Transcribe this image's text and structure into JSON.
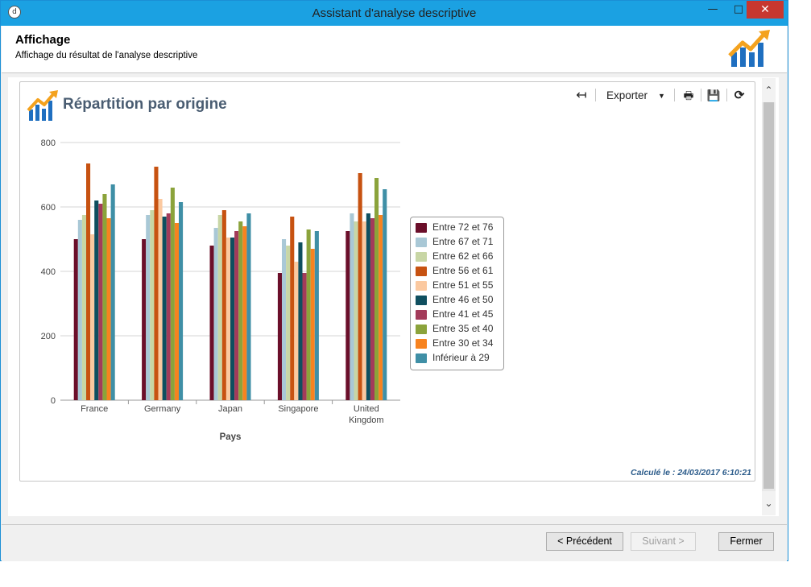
{
  "window": {
    "title": "Assistant d'analyse descriptive",
    "app_icon": "analysis-app-icon",
    "controls": {
      "minimize": "—",
      "maximize": "□",
      "close": "✕"
    }
  },
  "header": {
    "title": "Affichage",
    "subtitle": "Affichage du résultat de l'analyse descriptive",
    "logo_icon": "chart-trend-icon"
  },
  "toolbar": {
    "back_icon": "↤",
    "export_label": "Exporter",
    "dropdown_icon": "▼",
    "print_icon": "🖶",
    "save_icon": "💾",
    "refresh_icon": "⟳"
  },
  "chart_title": "Répartition par origine",
  "computed_label": "Calculé le : 24/03/2017 6:10:21",
  "colors": {
    "accent": "#1ba1e2",
    "close_button": "#c7372f",
    "title_text": "#4a5d72"
  },
  "chart_data": {
    "type": "bar",
    "categories": [
      "France",
      "Germany",
      "Japan",
      "Singapore",
      "United Kingdom"
    ],
    "xlabel": "Pays",
    "ylabel": "",
    "ylim": [
      0,
      800
    ],
    "yticks": [
      0,
      200,
      400,
      600,
      800
    ],
    "grid": true,
    "legend_position": "right",
    "series": [
      {
        "name": "Entre 72 et 76",
        "color": "#6b0f2a",
        "values": [
          500,
          500,
          480,
          395,
          525
        ]
      },
      {
        "name": "Entre 67 et 71",
        "color": "#a9c8d6",
        "values": [
          560,
          575,
          535,
          500,
          580
        ]
      },
      {
        "name": "Entre 62 et 66",
        "color": "#c8d6a5",
        "values": [
          575,
          590,
          575,
          480,
          555
        ]
      },
      {
        "name": "Entre 56 et 61",
        "color": "#c75211",
        "values": [
          735,
          725,
          590,
          570,
          705
        ]
      },
      {
        "name": "Entre 51 et 55",
        "color": "#fbc9a0",
        "values": [
          515,
          625,
          505,
          430,
          555
        ]
      },
      {
        "name": "Entre 46 et 50",
        "color": "#0f4f5f",
        "values": [
          620,
          570,
          505,
          490,
          580
        ]
      },
      {
        "name": "Entre 41 et 45",
        "color": "#a33b5a",
        "values": [
          610,
          580,
          525,
          395,
          565
        ]
      },
      {
        "name": "Entre 35 et 40",
        "color": "#8ba33b",
        "values": [
          640,
          660,
          555,
          530,
          690
        ]
      },
      {
        "name": "Entre 30 et 34",
        "color": "#f7831f",
        "values": [
          565,
          550,
          540,
          470,
          575
        ]
      },
      {
        "name": "Inférieur à 29",
        "color": "#3f8fa6",
        "values": [
          670,
          615,
          580,
          525,
          655
        ]
      }
    ]
  },
  "scrollbar": {
    "up_icon": "⌃",
    "down_icon": "⌄"
  },
  "footer": {
    "prev_label": "< Précédent",
    "next_label": "Suivant >",
    "close_label": "Fermer"
  }
}
